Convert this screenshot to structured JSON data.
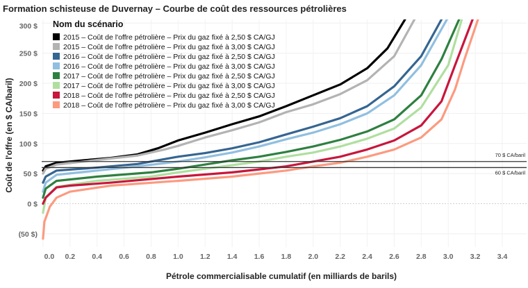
{
  "chart_data": {
    "type": "line",
    "title": "Formation schisteuse de Duvernay – Courbe de coût des ressources pétrolières",
    "xlabel": "Pétrole commercialisable cumulatif (en milliards de barils)",
    "ylabel": "Coût de l'offre (en $ CA/baril)",
    "xlim": [
      -0.01,
      3.58
    ],
    "ylim": [
      -72,
      306
    ],
    "grid": true,
    "legend_title": "Nom du scénario",
    "legend_placement": "top-left",
    "x_ticks": [
      "0.0",
      "0.2",
      "0.4",
      "0.6",
      "0.8",
      "1.0",
      "1.2",
      "1.4",
      "1.6",
      "1.8",
      "2.0",
      "2.2",
      "2.4",
      "2.6",
      "2.8",
      "3.0",
      "3.2",
      "3.4"
    ],
    "x_tick_values": [
      0,
      0.2,
      0.4,
      0.6,
      0.8,
      1.0,
      1.2,
      1.4,
      1.6,
      1.8,
      2.0,
      2.2,
      2.4,
      2.6,
      2.8,
      3.0,
      3.2,
      3.4
    ],
    "y_ticks": [
      "(50 $)",
      "0 $",
      "50 $",
      "100 $",
      "150 $",
      "200 $",
      "250 $",
      "300 $"
    ],
    "y_tick_values": [
      -50,
      0,
      50,
      100,
      150,
      200,
      250,
      300
    ],
    "reference_lines": [
      {
        "value": 70,
        "label": "70 $ CA/baril"
      },
      {
        "value": 60,
        "label": "60 $ CA/baril"
      }
    ],
    "series": [
      {
        "name": "2015 – Coût de l'offre pétrolière – Prix du gaz fixé à 2,50 $ CA/GJ",
        "color": "#000000",
        "x": [
          0,
          0.02,
          0.1,
          0.3,
          0.5,
          0.7,
          0.85,
          1.0,
          1.2,
          1.4,
          1.6,
          1.8,
          2.0,
          2.2,
          2.4,
          2.55,
          2.68
        ],
        "y": [
          55,
          62,
          68,
          72,
          76,
          82,
          92,
          105,
          118,
          132,
          145,
          162,
          180,
          198,
          225,
          258,
          306
        ]
      },
      {
        "name": "2015 – Coût de l'offre pétrolière – Prix du gaz fixé à 3,00 $ CA/GJ",
        "color": "#b3b3b3",
        "x": [
          0,
          0.02,
          0.1,
          0.3,
          0.5,
          0.7,
          0.9,
          1.0,
          1.2,
          1.4,
          1.6,
          1.8,
          2.0,
          2.2,
          2.4,
          2.6,
          2.75
        ],
        "y": [
          50,
          58,
          65,
          70,
          75,
          80,
          90,
          96,
          110,
          122,
          135,
          152,
          165,
          182,
          205,
          245,
          306
        ]
      },
      {
        "name": "2016 – Coût de l'offre pétrolière – Prix du gaz fixé à 2,50 $ CA/GJ",
        "color": "#356591",
        "x": [
          0,
          0.02,
          0.1,
          0.4,
          0.7,
          1.0,
          1.2,
          1.4,
          1.6,
          1.8,
          2.0,
          2.2,
          2.4,
          2.6,
          2.8,
          2.95
        ],
        "y": [
          35,
          45,
          55,
          60,
          66,
          78,
          84,
          92,
          102,
          115,
          128,
          142,
          162,
          195,
          245,
          306
        ]
      },
      {
        "name": "2016 – Coût de l'offre pétrolière – Prix du gaz fixé à 3,00 $ CA/GJ",
        "color": "#90bfe0",
        "x": [
          0,
          0.02,
          0.1,
          0.4,
          0.7,
          1.0,
          1.2,
          1.4,
          1.6,
          1.8,
          2.0,
          2.2,
          2.4,
          2.6,
          2.8,
          2.99
        ],
        "y": [
          20,
          35,
          48,
          55,
          62,
          70,
          77,
          85,
          95,
          107,
          118,
          132,
          150,
          180,
          230,
          306
        ]
      },
      {
        "name": "2017 – Coût de l'offre pétrolière – Prix du gaz fixé à 2,50 $ CA/GJ",
        "color": "#2e8040",
        "x": [
          0,
          0.02,
          0.1,
          0.4,
          0.8,
          1.0,
          1.2,
          1.4,
          1.6,
          1.8,
          2.0,
          2.2,
          2.4,
          2.6,
          2.8,
          2.95,
          3.08
        ],
        "y": [
          10,
          25,
          38,
          45,
          52,
          58,
          65,
          72,
          78,
          86,
          95,
          106,
          120,
          140,
          180,
          240,
          306
        ]
      },
      {
        "name": "2017 – Coût de l'offre pétrolière – Prix du gaz fixé à 3,00 $ CA/GJ",
        "color": "#afdf9f",
        "x": [
          0,
          0.02,
          0.1,
          0.4,
          0.8,
          1.0,
          1.2,
          1.4,
          1.6,
          1.8,
          2.0,
          2.2,
          2.4,
          2.6,
          2.8,
          3.0,
          3.1
        ],
        "y": [
          -15,
          10,
          28,
          38,
          45,
          52,
          58,
          64,
          70,
          78,
          85,
          95,
          108,
          125,
          160,
          230,
          306
        ]
      },
      {
        "name": "2018 – Coût de l'offre pétrolière – Prix du gaz fixé à 2,50 $ CA/GJ",
        "color": "#c8163c",
        "x": [
          0,
          0.02,
          0.1,
          0.2,
          0.5,
          1.0,
          1.4,
          1.6,
          1.8,
          2.0,
          2.2,
          2.4,
          2.6,
          2.8,
          2.95,
          3.05,
          3.18
        ],
        "y": [
          0,
          10,
          27,
          30,
          35,
          45,
          52,
          57,
          62,
          70,
          78,
          90,
          105,
          130,
          170,
          230,
          306
        ]
      },
      {
        "name": "2018 – Coût de l'offre pétrolière – Prix du gaz fixé à 3,00 $ CA/GJ",
        "color": "#fc9a80",
        "x": [
          0,
          0.01,
          0.05,
          0.1,
          0.2,
          0.5,
          1.0,
          1.4,
          1.6,
          1.8,
          2.0,
          2.2,
          2.4,
          2.6,
          2.8,
          2.95,
          3.05,
          3.12,
          3.22
        ],
        "y": [
          -58,
          -30,
          -5,
          10,
          20,
          30,
          38,
          45,
          50,
          55,
          62,
          68,
          78,
          90,
          110,
          140,
          190,
          240,
          306
        ]
      }
    ]
  }
}
